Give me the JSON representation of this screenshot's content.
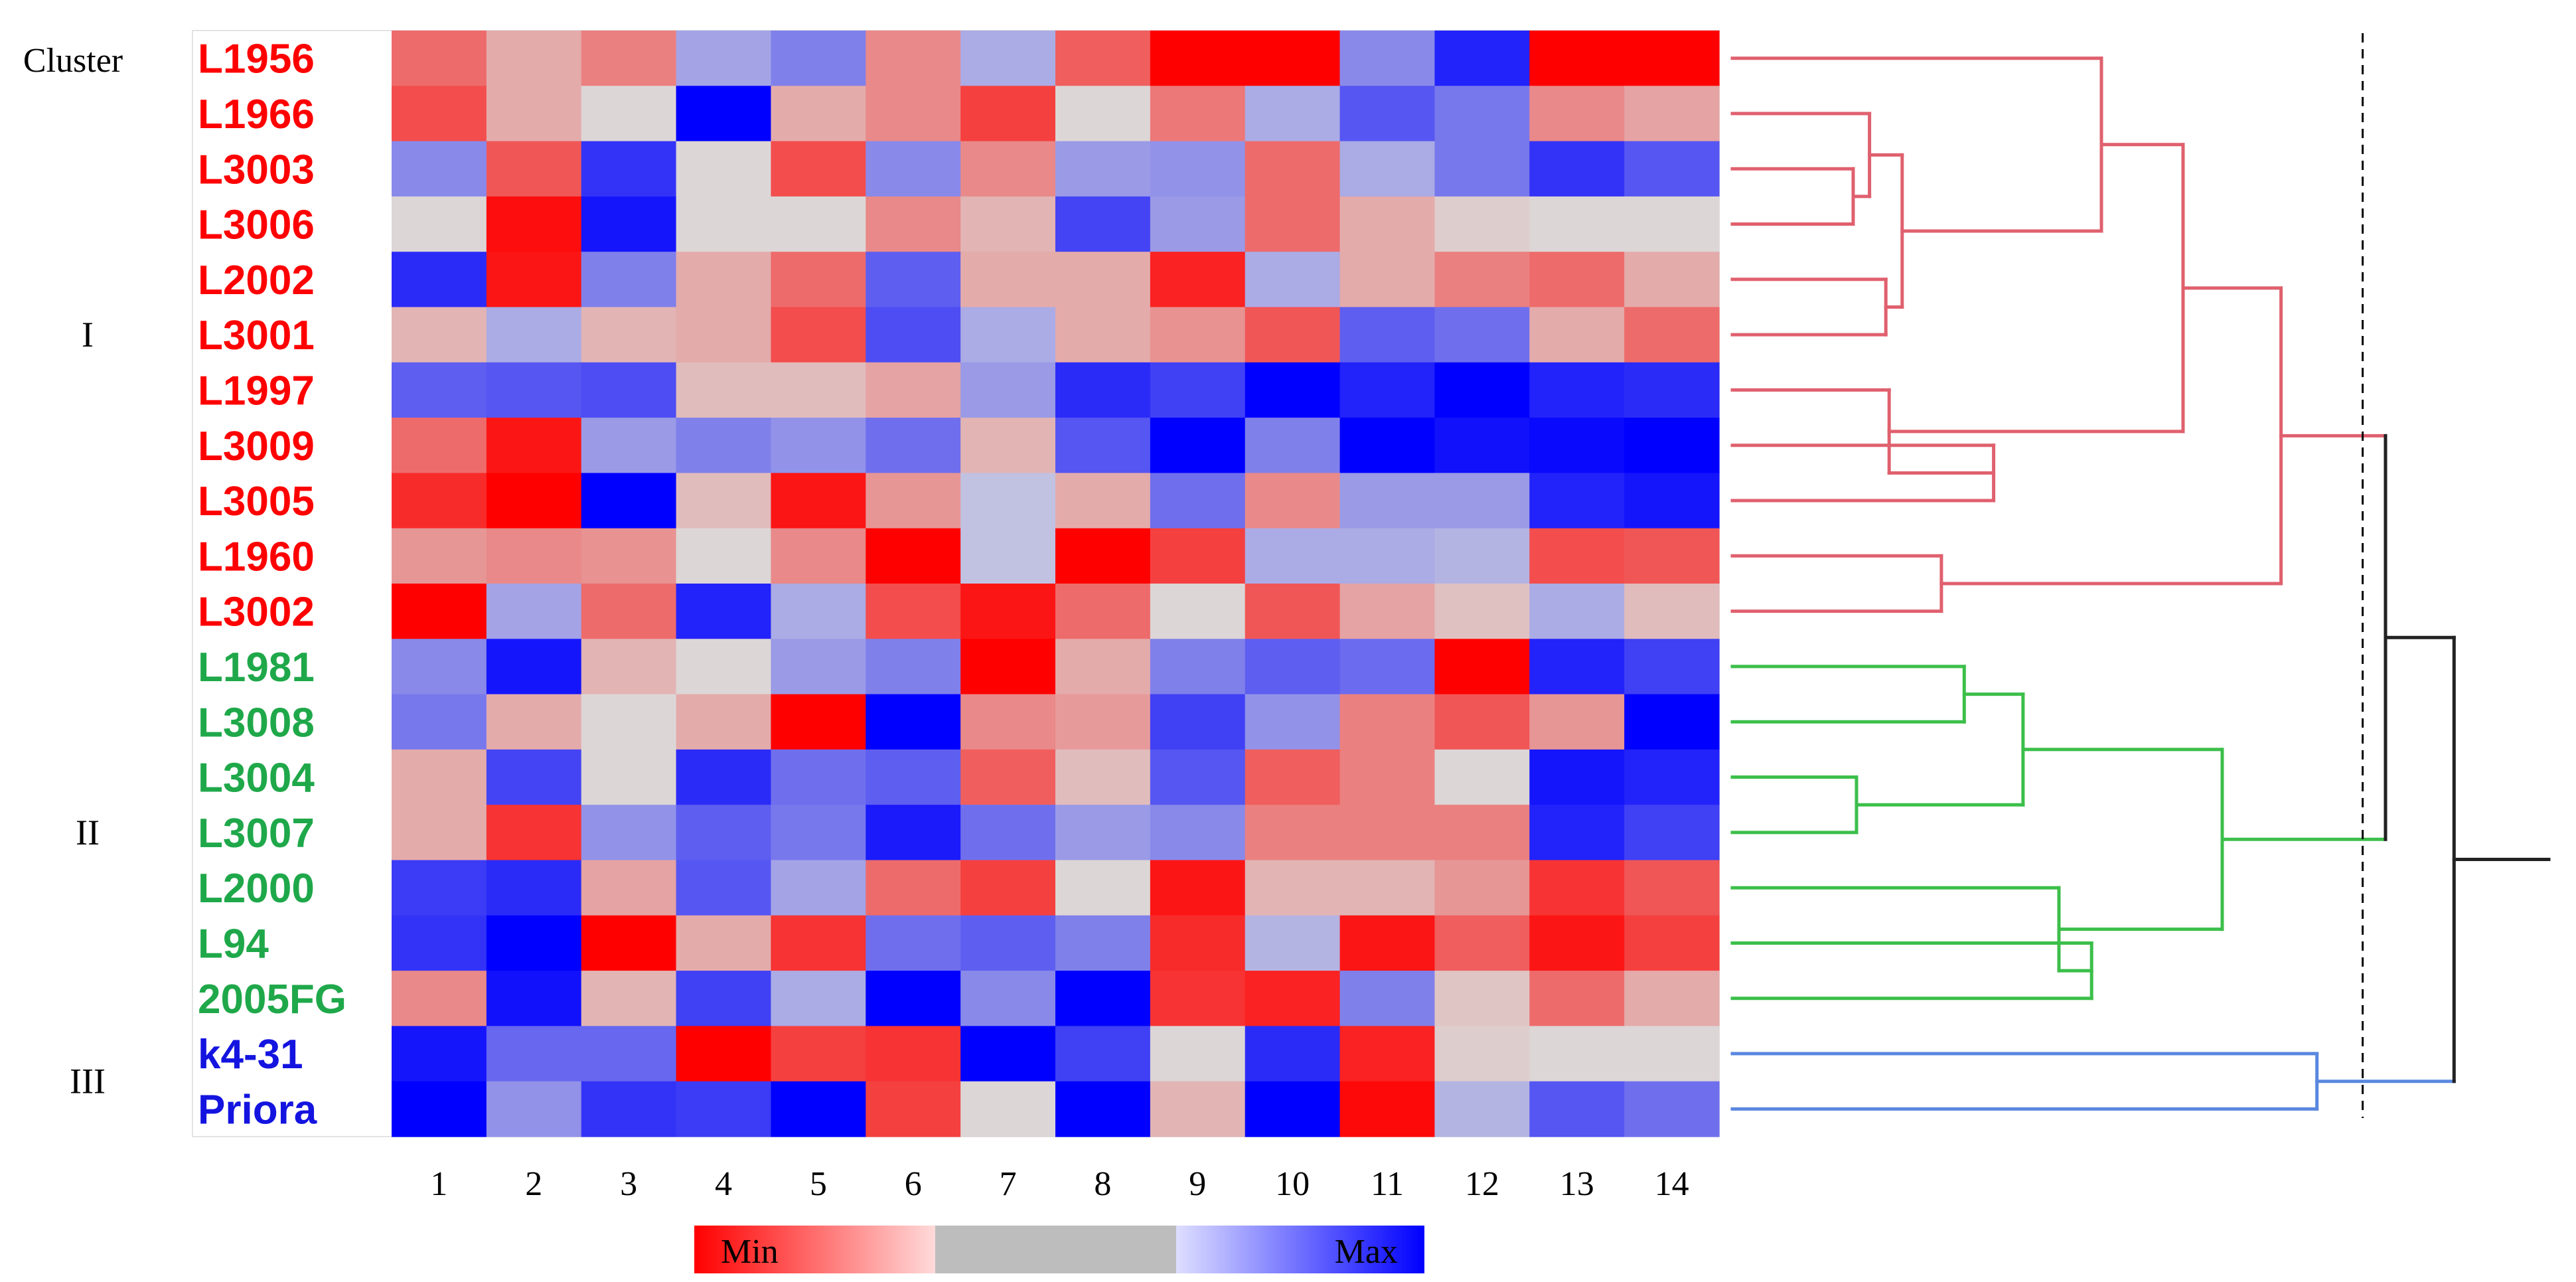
{
  "chart_data": {
    "type": "heatmap",
    "title": "",
    "cluster_header": "Cluster",
    "clusters": [
      {
        "name": "I",
        "rows": 11,
        "color": "#e0606e"
      },
      {
        "name": "II",
        "rows": 7,
        "color": "#3cbf4a"
      },
      {
        "name": "III",
        "rows": 2,
        "color": "#5a88e0"
      }
    ],
    "rows": [
      {
        "label": "L1956",
        "cluster": "I",
        "label_color": "#ff0000"
      },
      {
        "label": "L1966",
        "cluster": "I",
        "label_color": "#ff0000"
      },
      {
        "label": "L3003",
        "cluster": "I",
        "label_color": "#ff0000"
      },
      {
        "label": "L3006",
        "cluster": "I",
        "label_color": "#ff0000"
      },
      {
        "label": "L2002",
        "cluster": "I",
        "label_color": "#ff0000"
      },
      {
        "label": "L3001",
        "cluster": "I",
        "label_color": "#ff0000"
      },
      {
        "label": "L1997",
        "cluster": "I",
        "label_color": "#ff0000"
      },
      {
        "label": "L3009",
        "cluster": "I",
        "label_color": "#ff0000"
      },
      {
        "label": "L3005",
        "cluster": "I",
        "label_color": "#ff0000"
      },
      {
        "label": "L1960",
        "cluster": "I",
        "label_color": "#ff0000"
      },
      {
        "label": "L3002",
        "cluster": "I",
        "label_color": "#ff0000"
      },
      {
        "label": "L1981",
        "cluster": "II",
        "label_color": "#1fa84a"
      },
      {
        "label": "L3008",
        "cluster": "II",
        "label_color": "#1fa84a"
      },
      {
        "label": "L3004",
        "cluster": "II",
        "label_color": "#1fa84a"
      },
      {
        "label": "L3007",
        "cluster": "II",
        "label_color": "#1fa84a"
      },
      {
        "label": "L2000",
        "cluster": "II",
        "label_color": "#1fa84a"
      },
      {
        "label": "L94",
        "cluster": "II",
        "label_color": "#1fa84a"
      },
      {
        "label": "2005FG",
        "cluster": "II",
        "label_color": "#1fa84a"
      },
      {
        "label": "k4-31",
        "cluster": "III",
        "label_color": "#1414e0"
      },
      {
        "label": "Priora",
        "cluster": "III",
        "label_color": "#1414e0"
      }
    ],
    "columns": [
      "1",
      "2",
      "3",
      "4",
      "5",
      "6",
      "7",
      "8",
      "9",
      "10",
      "11",
      "12",
      "13",
      "14"
    ],
    "values": [
      [
        0.25,
        0.4,
        0.3,
        0.62,
        0.7,
        0.32,
        0.6,
        0.22,
        0.0,
        0.0,
        0.68,
        0.92,
        0.0,
        0.0
      ],
      [
        0.18,
        0.4,
        0.5,
        1.0,
        0.4,
        0.32,
        0.15,
        0.5,
        0.28,
        0.6,
        0.8,
        0.72,
        0.32,
        0.38
      ],
      [
        0.68,
        0.2,
        0.88,
        0.5,
        0.18,
        0.68,
        0.32,
        0.64,
        0.66,
        0.25,
        0.6,
        0.72,
        0.88,
        0.8
      ],
      [
        0.5,
        0.03,
        0.95,
        0.5,
        0.5,
        0.32,
        0.42,
        0.84,
        0.64,
        0.25,
        0.4,
        0.48,
        0.5,
        0.5
      ],
      [
        0.9,
        0.05,
        0.7,
        0.4,
        0.25,
        0.78,
        0.4,
        0.4,
        0.08,
        0.6,
        0.4,
        0.3,
        0.25,
        0.4
      ],
      [
        0.42,
        0.6,
        0.42,
        0.4,
        0.18,
        0.82,
        0.6,
        0.4,
        0.34,
        0.2,
        0.78,
        0.74,
        0.4,
        0.25
      ],
      [
        0.78,
        0.8,
        0.82,
        0.44,
        0.44,
        0.38,
        0.64,
        0.9,
        0.85,
        1.0,
        0.92,
        1.0,
        0.92,
        0.9
      ],
      [
        0.25,
        0.05,
        0.64,
        0.7,
        0.66,
        0.74,
        0.42,
        0.8,
        1.0,
        0.7,
        1.0,
        0.96,
        0.98,
        1.0
      ],
      [
        0.1,
        0.0,
        1.0,
        0.44,
        0.05,
        0.35,
        0.55,
        0.4,
        0.74,
        0.32,
        0.64,
        0.64,
        0.92,
        0.95
      ],
      [
        0.35,
        0.32,
        0.34,
        0.5,
        0.32,
        0.0,
        0.55,
        0.0,
        0.15,
        0.6,
        0.6,
        0.58,
        0.18,
        0.2
      ],
      [
        0.0,
        0.62,
        0.25,
        0.92,
        0.6,
        0.18,
        0.05,
        0.25,
        0.5,
        0.2,
        0.38,
        0.45,
        0.6,
        0.44
      ],
      [
        0.68,
        0.95,
        0.42,
        0.5,
        0.64,
        0.7,
        0.0,
        0.4,
        0.7,
        0.78,
        0.75,
        0.0,
        0.92,
        0.85
      ],
      [
        0.72,
        0.4,
        0.5,
        0.4,
        0.0,
        1.0,
        0.32,
        0.36,
        0.85,
        0.66,
        0.3,
        0.2,
        0.35,
        1.0
      ],
      [
        0.4,
        0.84,
        0.5,
        0.9,
        0.74,
        0.78,
        0.22,
        0.44,
        0.8,
        0.22,
        0.3,
        0.5,
        0.95,
        0.92
      ],
      [
        0.4,
        0.12,
        0.66,
        0.78,
        0.72,
        0.94,
        0.74,
        0.64,
        0.68,
        0.3,
        0.3,
        0.3,
        0.92,
        0.85
      ],
      [
        0.86,
        0.9,
        0.38,
        0.8,
        0.62,
        0.25,
        0.15,
        0.5,
        0.05,
        0.42,
        0.42,
        0.35,
        0.12,
        0.2
      ],
      [
        0.88,
        1.0,
        0.0,
        0.4,
        0.12,
        0.74,
        0.78,
        0.7,
        0.1,
        0.58,
        0.05,
        0.22,
        0.05,
        0.15
      ],
      [
        0.32,
        0.96,
        0.42,
        0.85,
        0.6,
        1.0,
        0.68,
        1.0,
        0.12,
        0.08,
        0.7,
        0.46,
        0.25,
        0.4
      ],
      [
        0.95,
        0.76,
        0.76,
        0.0,
        0.15,
        0.12,
        1.0,
        0.85,
        0.5,
        0.9,
        0.08,
        0.48,
        0.5,
        0.5
      ],
      [
        1.0,
        0.66,
        0.88,
        0.86,
        1.0,
        0.15,
        0.5,
        1.0,
        0.42,
        1.0,
        0.02,
        0.58,
        0.8,
        0.74
      ]
    ],
    "value_range": [
      0,
      1
    ],
    "legend": {
      "min_label": "Min",
      "max_label": "Max",
      "position": "bottom"
    },
    "dendrogram": {
      "nodes": [
        {
          "id": "a",
          "children": [
            2,
            3
          ],
          "height": 0.37
        },
        {
          "id": "b",
          "children": [
            "a",
            1
          ],
          "height": 0.42
        },
        {
          "id": "c",
          "children": [
            4,
            5
          ],
          "height": 0.47
        },
        {
          "id": "d",
          "children": [
            "b",
            "c"
          ],
          "height": 0.52
        },
        {
          "id": "e",
          "children": [
            0,
            "d"
          ],
          "height": 1.13
        },
        {
          "id": "f",
          "children": [
            7,
            8
          ],
          "height": 0.8
        },
        {
          "id": "g",
          "children": [
            6,
            "f"
          ],
          "height": 0.48
        },
        {
          "id": "h",
          "children": [
            "e",
            "g"
          ],
          "height": 1.38
        },
        {
          "id": "i",
          "children": [
            9,
            10
          ],
          "height": 0.64
        },
        {
          "id": "j",
          "children": [
            "h",
            "i"
          ],
          "height": 1.68
        },
        {
          "id": "k",
          "children": [
            11,
            12
          ],
          "height": 0.71
        },
        {
          "id": "l",
          "children": [
            13,
            14
          ],
          "height": 0.38
        },
        {
          "id": "m",
          "children": [
            "k",
            "l"
          ],
          "height": 0.89
        },
        {
          "id": "n",
          "children": [
            16,
            17
          ],
          "height": 1.1
        },
        {
          "id": "o",
          "children": [
            15,
            "n"
          ],
          "height": 1.0
        },
        {
          "id": "p",
          "children": [
            "m",
            "o"
          ],
          "height": 1.5
        },
        {
          "id": "q",
          "children": [
            "j",
            "p"
          ],
          "height": 2.0
        },
        {
          "id": "r",
          "children": [
            18,
            19
          ],
          "height": 1.79
        },
        {
          "id": "s",
          "children": [
            "q",
            "r"
          ],
          "height": 2.21
        }
      ],
      "root_height": 2.5,
      "max_height": 2.5,
      "cut_height": 1.93,
      "cut_line": "dashed",
      "root_color": "#222222"
    }
  }
}
